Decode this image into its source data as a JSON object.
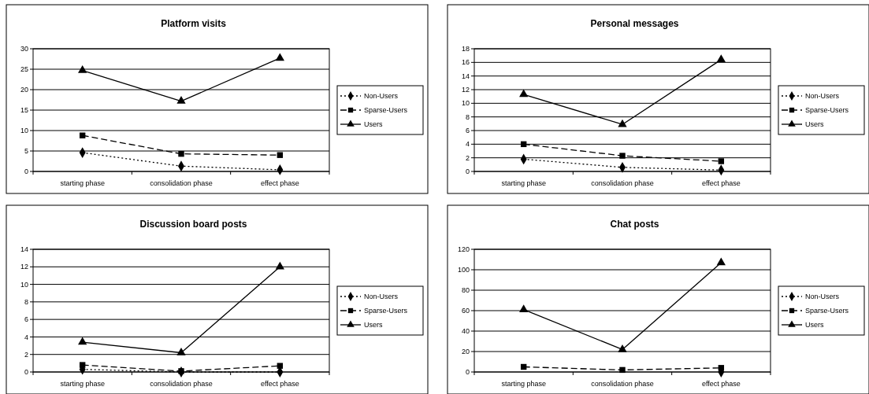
{
  "chart_data": [
    {
      "type": "line",
      "title": "Platform visits",
      "categories": [
        "starting phase",
        "consolidation phase",
        "effect phase"
      ],
      "ylim": [
        0,
        30
      ],
      "yticks": [
        0,
        5,
        10,
        15,
        20,
        25,
        30
      ],
      "grid": "y",
      "legend": "right",
      "series": [
        {
          "name": "Non-Users",
          "color": "#000000",
          "marker": "diamond",
          "line_style": "dotted",
          "values": [
            4.6,
            1.3,
            0.4
          ]
        },
        {
          "name": "Sparse-Users",
          "color": "#000000",
          "marker": "square",
          "line_style": "dashed",
          "values": [
            8.8,
            4.3,
            4.0
          ]
        },
        {
          "name": "Users",
          "color": "#000000",
          "marker": "triangle",
          "line_style": "solid",
          "values": [
            24.7,
            17.2,
            27.7
          ]
        }
      ]
    },
    {
      "type": "line",
      "title": "Personal messages",
      "categories": [
        "starting phase",
        "consolidation phase",
        "effect phase"
      ],
      "ylim": [
        0,
        18
      ],
      "yticks": [
        0,
        2,
        4,
        6,
        8,
        10,
        12,
        14,
        16,
        18
      ],
      "grid": "y",
      "legend": "right",
      "series": [
        {
          "name": "Non-Users",
          "color": "#000000",
          "marker": "diamond",
          "line_style": "dotted",
          "values": [
            1.8,
            0.6,
            0.2
          ]
        },
        {
          "name": "Sparse-Users",
          "color": "#000000",
          "marker": "square",
          "line_style": "dashed",
          "values": [
            4.0,
            2.3,
            1.5
          ]
        },
        {
          "name": "Users",
          "color": "#000000",
          "marker": "triangle",
          "line_style": "solid",
          "values": [
            11.3,
            6.9,
            16.4
          ]
        }
      ]
    },
    {
      "type": "line",
      "title": "Discussion board posts",
      "categories": [
        "starting phase",
        "consolidation phase",
        "effect phase"
      ],
      "ylim": [
        0,
        14
      ],
      "yticks": [
        0,
        2,
        4,
        6,
        8,
        10,
        12,
        14
      ],
      "grid": "y",
      "legend": "right",
      "series": [
        {
          "name": "Non-Users",
          "color": "#000000",
          "marker": "diamond",
          "line_style": "dotted",
          "values": [
            0.3,
            0.0,
            0.0
          ]
        },
        {
          "name": "Sparse-Users",
          "color": "#000000",
          "marker": "square",
          "line_style": "dashed",
          "values": [
            0.8,
            0.1,
            0.7
          ]
        },
        {
          "name": "Users",
          "color": "#000000",
          "marker": "triangle",
          "line_style": "solid",
          "values": [
            3.4,
            2.2,
            12.0
          ]
        }
      ]
    },
    {
      "type": "line",
      "title": "Chat posts",
      "categories": [
        "starting phase",
        "consolidation phase",
        "effect phase"
      ],
      "ylim": [
        0,
        120
      ],
      "yticks": [
        0,
        20,
        40,
        60,
        80,
        100,
        120
      ],
      "grid": "y",
      "legend": "right",
      "series": [
        {
          "name": "Non-Users",
          "color": "#000000",
          "marker": "diamond",
          "line_style": "dotted",
          "values": [
            null,
            null,
            0
          ]
        },
        {
          "name": "Sparse-Users",
          "color": "#000000",
          "marker": "square",
          "line_style": "dashed",
          "values": [
            5,
            2,
            4
          ]
        },
        {
          "name": "Users",
          "color": "#000000",
          "marker": "triangle",
          "line_style": "solid",
          "values": [
            61,
            22,
            107
          ]
        }
      ]
    }
  ]
}
